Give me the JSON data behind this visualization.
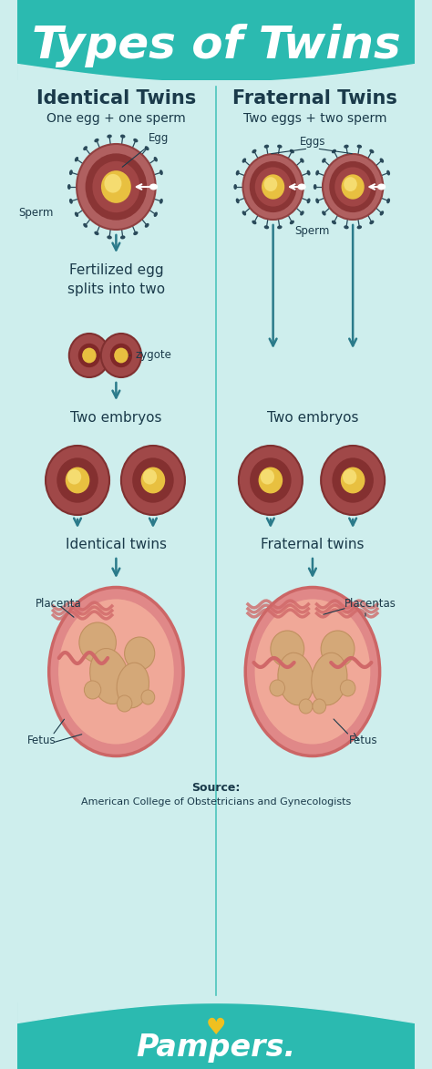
{
  "title": "Types of Twins",
  "title_color": "#ffffff",
  "header_bg": "#2bbab0",
  "body_bg": "#ceeeed",
  "footer_bg": "#2bbab0",
  "divider_color": "#2bbab0",
  "text_color": "#1a3a4a",
  "arrow_color": "#2a7a8a",
  "left_title": "Identical Twins",
  "right_title": "Fraternal Twins",
  "left_sub": "One egg + one sperm",
  "right_sub": "Two eggs + two sperm",
  "left_label1": "Egg",
  "right_label1": "Eggs",
  "sperm_label_left": "Sperm",
  "sperm_label_right": "Sperm",
  "left_mid_label": "Fertilized egg\nsplits into two",
  "zygote_label": "zygote",
  "left_embryo_label": "Two embryos",
  "right_embryo_label": "Two embryos",
  "left_twins_label": "Identical twins",
  "right_twins_label": "Fraternal twins",
  "placenta_label_left": "Placenta",
  "placentas_label_right": "Placentas",
  "fetus_label_left": "Fetus",
  "fetus_label_right": "Fetus",
  "source_bold": "Source:",
  "source_normal": "American College of Obstetricians and Gynecologists",
  "pampers_text": "Pampers.",
  "egg_outer": "#a85858",
  "egg_mid": "#8a3838",
  "egg_yolk": "#e8c040",
  "egg_yolk_inner": "#f8e070",
  "sperm_color": "#1a3a4a",
  "womb_outer": "#e89090",
  "womb_inner": "#f0b8a8",
  "fetus_skin": "#d4a878",
  "fetus_dark": "#c09060",
  "cord_color": "#d06868"
}
